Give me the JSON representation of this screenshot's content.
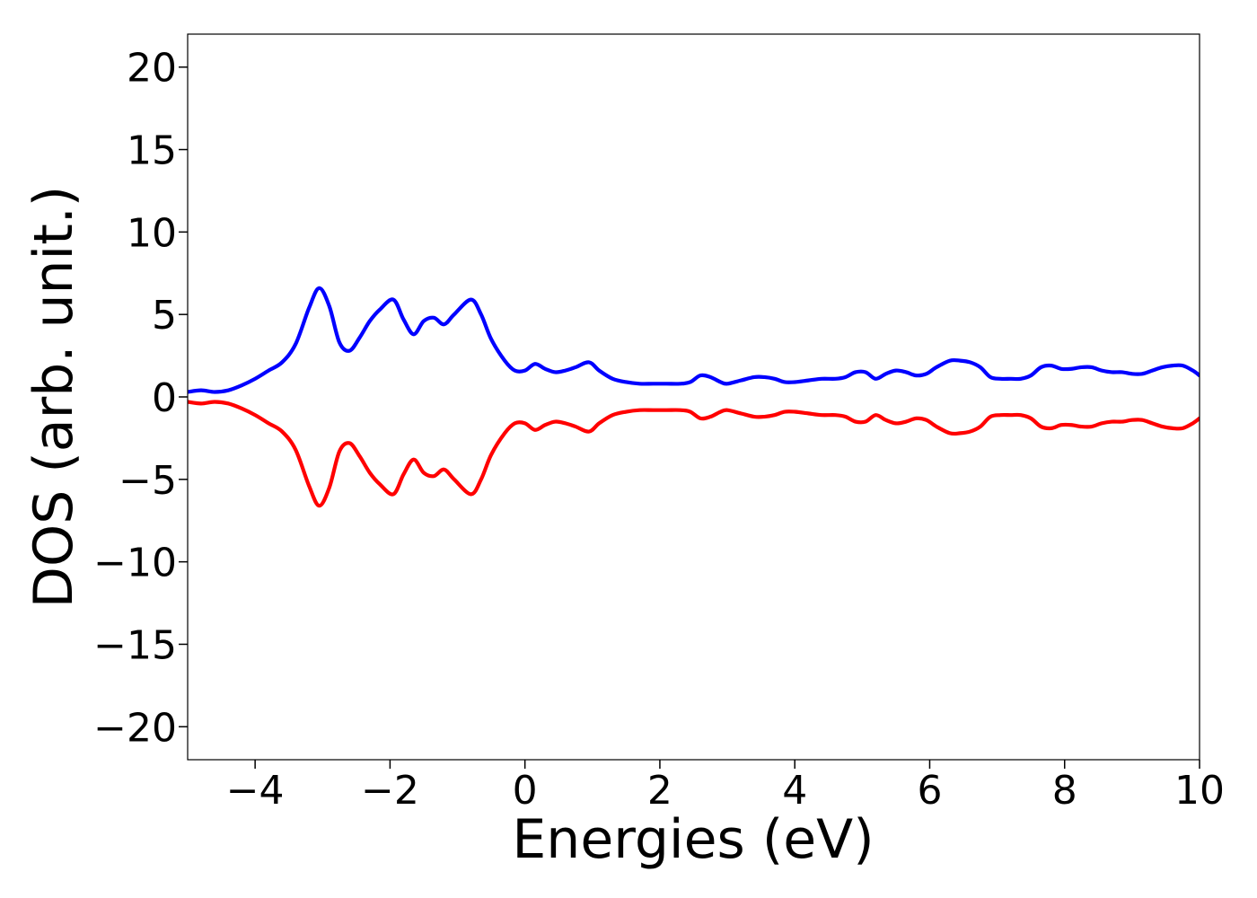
{
  "chart_data": {
    "type": "line",
    "title": "",
    "xlabel": "Energies (eV)",
    "ylabel": "DOS (arb. unit.)",
    "xlim": [
      -5,
      10
    ],
    "ylim": [
      -22,
      22
    ],
    "xticks": [
      -4,
      -2,
      0,
      2,
      4,
      6,
      8,
      10
    ],
    "xtick_labels": [
      "−4",
      "−2",
      "0",
      "2",
      "4",
      "6",
      "8",
      "10"
    ],
    "yticks": [
      20,
      15,
      10,
      5,
      0,
      -5,
      -10,
      -15,
      -20
    ],
    "ytick_labels": [
      "20",
      "15",
      "10",
      "5",
      "0",
      "−5",
      "−10",
      "−15",
      "−20"
    ],
    "grid": false,
    "legend": "none",
    "x": [
      -5.0,
      -4.8,
      -4.6,
      -4.4,
      -4.2,
      -4.0,
      -3.8,
      -3.6,
      -3.4,
      -3.2,
      -3.05,
      -2.9,
      -2.75,
      -2.6,
      -2.45,
      -2.3,
      -2.15,
      -1.95,
      -1.8,
      -1.65,
      -1.5,
      -1.35,
      -1.2,
      -1.05,
      -0.8,
      -0.65,
      -0.5,
      -0.3,
      -0.15,
      0.0,
      0.15,
      0.3,
      0.45,
      0.6,
      0.75,
      0.95,
      1.1,
      1.3,
      1.5,
      1.7,
      1.9,
      2.1,
      2.3,
      2.45,
      2.6,
      2.75,
      2.9,
      3.0,
      3.2,
      3.4,
      3.55,
      3.7,
      3.85,
      4.0,
      4.2,
      4.4,
      4.6,
      4.75,
      4.9,
      5.05,
      5.2,
      5.35,
      5.5,
      5.65,
      5.8,
      5.95,
      6.1,
      6.3,
      6.45,
      6.6,
      6.75,
      6.9,
      7.05,
      7.2,
      7.35,
      7.5,
      7.65,
      7.8,
      7.95,
      8.1,
      8.25,
      8.4,
      8.55,
      8.7,
      8.85,
      9.0,
      9.15,
      9.3,
      9.45,
      9.6,
      9.75,
      9.9,
      10.0
    ],
    "series": [
      {
        "color": "#0000ff",
        "values": [
          0.3,
          0.4,
          0.3,
          0.4,
          0.7,
          1.1,
          1.6,
          2.1,
          3.2,
          5.4,
          6.6,
          5.5,
          3.3,
          2.8,
          3.6,
          4.6,
          5.3,
          5.9,
          4.7,
          3.8,
          4.6,
          4.8,
          4.4,
          5.0,
          5.9,
          5.0,
          3.5,
          2.2,
          1.6,
          1.6,
          2.0,
          1.7,
          1.5,
          1.6,
          1.8,
          2.1,
          1.6,
          1.1,
          0.9,
          0.8,
          0.8,
          0.8,
          0.8,
          0.9,
          1.3,
          1.2,
          0.9,
          0.8,
          1.0,
          1.2,
          1.2,
          1.1,
          0.9,
          0.9,
          1.0,
          1.1,
          1.1,
          1.2,
          1.5,
          1.5,
          1.1,
          1.4,
          1.6,
          1.5,
          1.3,
          1.4,
          1.8,
          2.2,
          2.2,
          2.1,
          1.8,
          1.2,
          1.1,
          1.1,
          1.1,
          1.3,
          1.8,
          1.9,
          1.7,
          1.7,
          1.8,
          1.8,
          1.6,
          1.5,
          1.5,
          1.4,
          1.4,
          1.6,
          1.8,
          1.9,
          1.9,
          1.6,
          1.3
        ]
      },
      {
        "color": "#ff0000",
        "values": [
          -0.3,
          -0.4,
          -0.3,
          -0.4,
          -0.7,
          -1.1,
          -1.6,
          -2.1,
          -3.2,
          -5.4,
          -6.6,
          -5.5,
          -3.3,
          -2.8,
          -3.6,
          -4.6,
          -5.3,
          -5.9,
          -4.7,
          -3.8,
          -4.6,
          -4.8,
          -4.4,
          -5.0,
          -5.9,
          -5.0,
          -3.5,
          -2.2,
          -1.6,
          -1.6,
          -2.0,
          -1.7,
          -1.5,
          -1.6,
          -1.8,
          -2.1,
          -1.6,
          -1.1,
          -0.9,
          -0.8,
          -0.8,
          -0.8,
          -0.8,
          -0.9,
          -1.3,
          -1.2,
          -0.9,
          -0.8,
          -1.0,
          -1.2,
          -1.2,
          -1.1,
          -0.9,
          -0.9,
          -1.0,
          -1.1,
          -1.1,
          -1.2,
          -1.5,
          -1.5,
          -1.1,
          -1.4,
          -1.6,
          -1.5,
          -1.3,
          -1.4,
          -1.8,
          -2.2,
          -2.2,
          -2.1,
          -1.8,
          -1.2,
          -1.1,
          -1.1,
          -1.1,
          -1.3,
          -1.8,
          -1.9,
          -1.7,
          -1.7,
          -1.8,
          -1.8,
          -1.6,
          -1.5,
          -1.5,
          -1.4,
          -1.4,
          -1.6,
          -1.8,
          -1.9,
          -1.9,
          -1.6,
          -1.3
        ]
      }
    ]
  }
}
